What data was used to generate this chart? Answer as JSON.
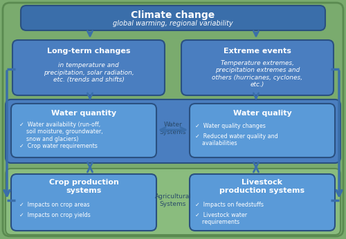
{
  "bg_color": "#7aab6e",
  "outer_border_color": "#5a8a50",
  "box_dark": "#3a6eaa",
  "box_mid": "#4a7ec0",
  "box_light": "#5a9ad8",
  "water_outer": "#4a7ec0",
  "ag_outer": "#8abc7e",
  "arrow_color": "#3a6eaa",
  "text_white": "#ffffff",
  "text_label": "#2a4a6a",
  "climate_title": "Climate change",
  "climate_sub": "global warming, regional variability",
  "longterm_title": "Long-term changes",
  "longterm_body": "in temperature and\nprecipitation, solar radiation,\netc. (trends and shifts)",
  "extreme_title": "Extreme events",
  "extreme_body": "Temperature extremes,\nprecipitation extremes and\nothers (hurricanes, cyclones,\netc.)",
  "wq_title": "Water quantity",
  "wq_items": [
    "✓  Water availability (run-off,\n    soil moisture, groundwater,\n    snow and glaciers)",
    "✓  Crop water requirements"
  ],
  "wqly_title": "Water quality",
  "wqly_items": [
    "✓  Water quality changes",
    "✓  Reduced water quality and\n    availabilities"
  ],
  "crop_title": "Crop production\nsystems",
  "crop_items": [
    "✓  Impacts on crop areas",
    "✓  Impacts on crop yields"
  ],
  "live_title": "Livestock\nproduction systems",
  "live_items": [
    "✓  Impacts on feedstuffs",
    "✓  Livestock water\n    requirements"
  ],
  "water_sys_label": "Water\nSystems",
  "ag_sys_label": "Agricultural\nSystems"
}
